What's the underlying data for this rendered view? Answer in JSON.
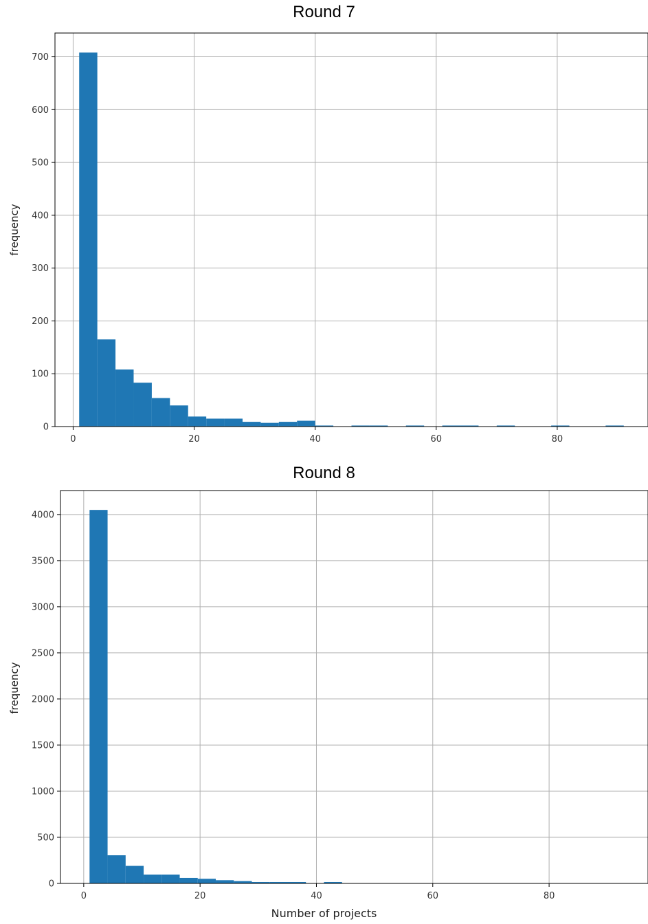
{
  "charts": {
    "round7": {
      "title": "Round 7",
      "ylabel": "frequency"
    },
    "round8": {
      "title": "Round 8",
      "ylabel": "frequency",
      "xlabel": "Number of projects"
    }
  },
  "colors": {
    "bar": "#1f77b4",
    "grid": "#b0b0b0",
    "axis": "#000000"
  },
  "chart_data": [
    {
      "type": "bar",
      "title": "Round 7",
      "xlabel": "",
      "ylabel": "frequency",
      "grid": true,
      "xlim": [
        -3,
        95
      ],
      "ylim": [
        0,
        745
      ],
      "xticks": [
        0,
        20,
        40,
        60,
        80
      ],
      "yticks": [
        0,
        100,
        200,
        300,
        400,
        500,
        600,
        700
      ],
      "bins": [
        {
          "x0": 1.0,
          "x1": 4.0,
          "value": 708
        },
        {
          "x0": 4.0,
          "x1": 7.0,
          "value": 165
        },
        {
          "x0": 7.0,
          "x1": 10.0,
          "value": 108
        },
        {
          "x0": 10.0,
          "x1": 13.0,
          "value": 83
        },
        {
          "x0": 13.0,
          "x1": 16.0,
          "value": 54
        },
        {
          "x0": 16.0,
          "x1": 19.0,
          "value": 40
        },
        {
          "x0": 19.0,
          "x1": 22.0,
          "value": 19
        },
        {
          "x0": 22.0,
          "x1": 25.0,
          "value": 15
        },
        {
          "x0": 25.0,
          "x1": 28.0,
          "value": 15
        },
        {
          "x0": 28.0,
          "x1": 31.0,
          "value": 9
        },
        {
          "x0": 31.0,
          "x1": 34.0,
          "value": 7
        },
        {
          "x0": 34.0,
          "x1": 37.0,
          "value": 9
        },
        {
          "x0": 37.0,
          "x1": 40.0,
          "value": 11
        },
        {
          "x0": 40.0,
          "x1": 43.0,
          "value": 2
        },
        {
          "x0": 46.0,
          "x1": 49.0,
          "value": 2
        },
        {
          "x0": 49.0,
          "x1": 52.0,
          "value": 2
        },
        {
          "x0": 55.0,
          "x1": 58.0,
          "value": 2
        },
        {
          "x0": 61.0,
          "x1": 64.0,
          "value": 2
        },
        {
          "x0": 64.0,
          "x1": 67.0,
          "value": 2
        },
        {
          "x0": 70.0,
          "x1": 73.0,
          "value": 2
        },
        {
          "x0": 79.0,
          "x1": 82.0,
          "value": 2
        },
        {
          "x0": 88.0,
          "x1": 91.0,
          "value": 2
        }
      ]
    },
    {
      "type": "bar",
      "title": "Round 8",
      "xlabel": "Number of projects",
      "ylabel": "frequency",
      "grid": true,
      "xlim": [
        -4,
        97
      ],
      "ylim": [
        0,
        4260
      ],
      "xticks": [
        0,
        20,
        40,
        60,
        80
      ],
      "yticks": [
        0,
        500,
        1000,
        1500,
        2000,
        2500,
        3000,
        3500,
        4000
      ],
      "bins": [
        {
          "x0": 1.0,
          "x1": 4.1,
          "value": 4050
        },
        {
          "x0": 4.1,
          "x1": 7.2,
          "value": 305
        },
        {
          "x0": 7.2,
          "x1": 10.3,
          "value": 190
        },
        {
          "x0": 10.3,
          "x1": 13.4,
          "value": 95
        },
        {
          "x0": 13.4,
          "x1": 16.5,
          "value": 95
        },
        {
          "x0": 16.5,
          "x1": 19.6,
          "value": 60
        },
        {
          "x0": 19.6,
          "x1": 22.7,
          "value": 50
        },
        {
          "x0": 22.7,
          "x1": 25.8,
          "value": 35
        },
        {
          "x0": 25.8,
          "x1": 28.9,
          "value": 25
        },
        {
          "x0": 28.9,
          "x1": 32.0,
          "value": 15
        },
        {
          "x0": 32.0,
          "x1": 35.1,
          "value": 15
        },
        {
          "x0": 35.1,
          "x1": 38.2,
          "value": 15
        },
        {
          "x0": 41.3,
          "x1": 44.4,
          "value": 15
        }
      ]
    }
  ]
}
